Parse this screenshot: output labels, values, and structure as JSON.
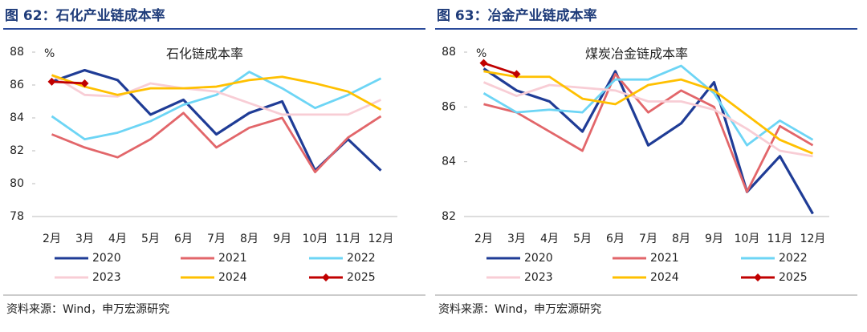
{
  "chart_data": [
    {
      "type": "line",
      "title": "图 62：石化产业链成本率",
      "subtitle": "石化链成本率",
      "y_label": "%",
      "categories": [
        "2月",
        "3月",
        "4月",
        "5月",
        "6月",
        "7月",
        "8月",
        "9月",
        "10月",
        "11月",
        "12月"
      ],
      "ylim": [
        78,
        88
      ],
      "yticks": [
        78,
        80,
        82,
        84,
        86,
        88
      ],
      "series": [
        {
          "name": "2020",
          "color": "#1f3c96",
          "values": [
            86.2,
            86.9,
            86.3,
            84.2,
            85.1,
            83.0,
            84.3,
            85.0,
            80.8,
            82.7,
            80.8
          ]
        },
        {
          "name": "2021",
          "color": "#e2666a",
          "values": [
            83.0,
            82.2,
            81.6,
            82.7,
            84.3,
            82.2,
            83.4,
            84.0,
            80.7,
            82.8,
            84.1
          ]
        },
        {
          "name": "2022",
          "color": "#6dd5f5",
          "values": [
            84.1,
            82.7,
            83.1,
            83.8,
            84.8,
            85.4,
            86.8,
            85.8,
            84.6,
            85.4,
            86.4
          ]
        },
        {
          "name": "2023",
          "color": "#f8cdd5",
          "values": [
            86.6,
            85.4,
            85.3,
            86.1,
            85.8,
            85.6,
            84.9,
            84.2,
            84.2,
            84.2,
            85.1
          ]
        },
        {
          "name": "2024",
          "color": "#ffc000",
          "values": [
            86.6,
            85.9,
            85.4,
            85.8,
            85.8,
            85.9,
            86.3,
            86.5,
            86.1,
            85.6,
            84.5
          ]
        },
        {
          "name": "2025",
          "color": "#c00000",
          "marker": "diamond",
          "values": [
            86.2,
            86.1,
            null,
            null,
            null,
            null,
            null,
            null,
            null,
            null,
            null
          ]
        }
      ],
      "source": "资料来源：Wind，申万宏源研究"
    },
    {
      "type": "line",
      "title": "图 63：冶金产业链成本率",
      "subtitle": "煤炭冶金链成本率",
      "y_label": "%",
      "categories": [
        "2月",
        "3月",
        "4月",
        "5月",
        "6月",
        "7月",
        "8月",
        "9月",
        "10月",
        "11月",
        "12月"
      ],
      "ylim": [
        82,
        88
      ],
      "yticks": [
        82,
        84,
        86,
        88
      ],
      "series": [
        {
          "name": "2020",
          "color": "#1f3c96",
          "values": [
            87.4,
            86.6,
            86.2,
            85.1,
            87.3,
            84.6,
            85.4,
            86.9,
            82.9,
            84.2,
            82.1
          ]
        },
        {
          "name": "2021",
          "color": "#e2666a",
          "values": [
            86.1,
            85.8,
            85.1,
            84.4,
            87.2,
            85.8,
            86.6,
            86.0,
            82.9,
            85.3,
            84.6
          ]
        },
        {
          "name": "2022",
          "color": "#6dd5f5",
          "values": [
            86.5,
            85.8,
            85.9,
            85.8,
            87.0,
            87.0,
            87.5,
            86.5,
            84.6,
            85.5,
            84.8
          ]
        },
        {
          "name": "2023",
          "color": "#f8cdd5",
          "values": [
            86.9,
            86.4,
            86.8,
            86.7,
            86.6,
            86.2,
            86.2,
            85.9,
            85.2,
            84.4,
            84.2
          ]
        },
        {
          "name": "2024",
          "color": "#ffc000",
          "values": [
            87.3,
            87.1,
            87.1,
            86.3,
            86.1,
            86.8,
            87.0,
            86.6,
            85.7,
            84.8,
            84.3
          ]
        },
        {
          "name": "2025",
          "color": "#c00000",
          "marker": "diamond",
          "values": [
            87.6,
            87.2,
            null,
            null,
            null,
            null,
            null,
            null,
            null,
            null,
            null
          ]
        }
      ],
      "source": "资料来源：Wind，申万宏源研究"
    }
  ]
}
